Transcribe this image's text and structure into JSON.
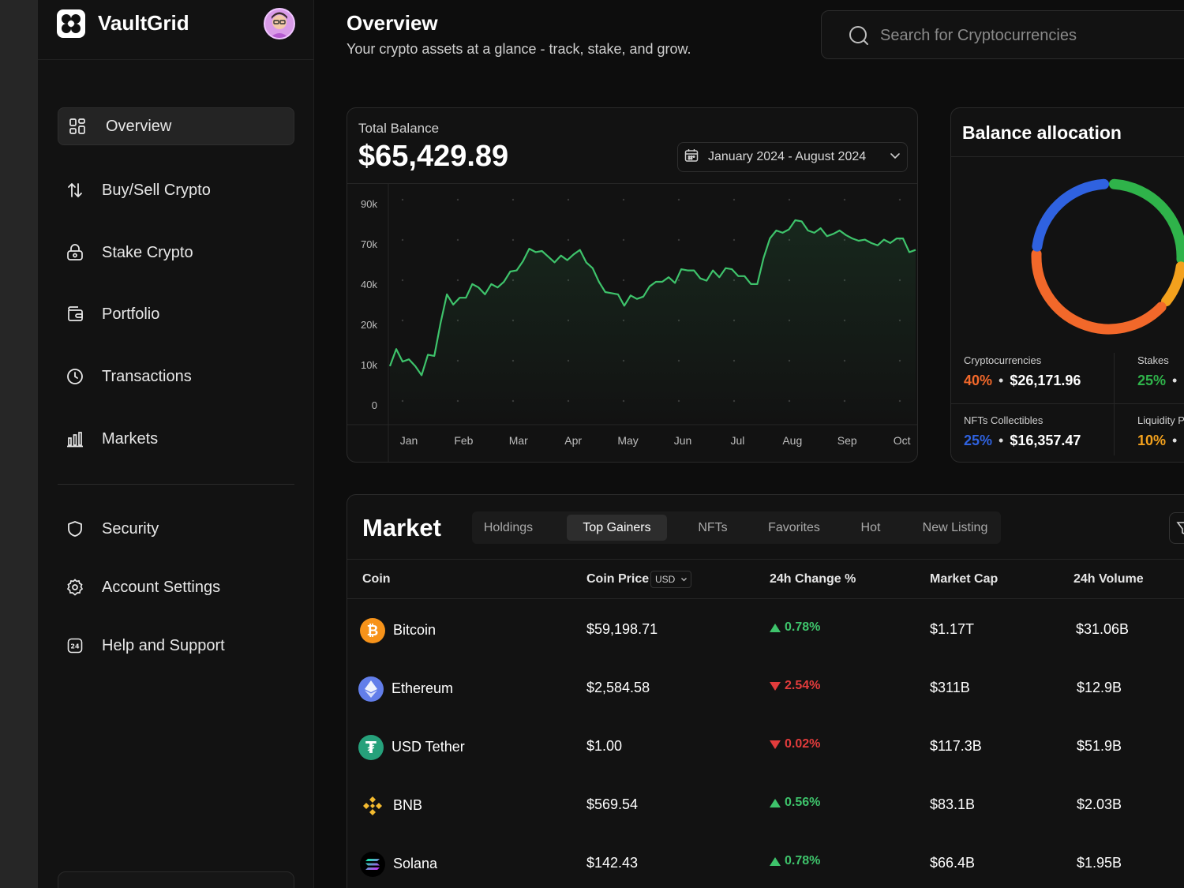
{
  "brand": {
    "name": "VaultGrid"
  },
  "nav": {
    "items": [
      {
        "label": "Overview",
        "icon": "grid-icon"
      },
      {
        "label": "Buy/Sell Crypto",
        "icon": "arrows-updown-icon"
      },
      {
        "label": "Stake Crypto",
        "icon": "lock-icon"
      },
      {
        "label": "Portfolio",
        "icon": "wallet-icon"
      },
      {
        "label": "Transactions",
        "icon": "clock-icon"
      },
      {
        "label": "Markets",
        "icon": "bar-chart-icon"
      }
    ],
    "secondary": [
      {
        "label": "Security",
        "icon": "shield-icon"
      },
      {
        "label": "Account Settings",
        "icon": "gear-icon"
      },
      {
        "label": "Help and Support",
        "icon": "support-24-icon"
      }
    ]
  },
  "header": {
    "title": "Overview",
    "subtitle": "Your crypto assets at a glance - track, stake, and grow.",
    "search_placeholder": "Search for Cryptocurrencies"
  },
  "balance": {
    "label": "Total Balance",
    "value": "$65,429.89",
    "range": "January 2024 - August 2024"
  },
  "chart_data": {
    "type": "line",
    "title": "",
    "xlabel": "",
    "ylabel": "",
    "x_ticks": [
      "Jan",
      "Feb",
      "Mar",
      "Apr",
      "May",
      "Jun",
      "Jul",
      "Aug",
      "Sep",
      "Oct"
    ],
    "y_ticks": [
      "0",
      "10k",
      "20k",
      "40k",
      "70k",
      "90k"
    ],
    "line_color": "#3ec36b",
    "grid": "dotted",
    "series": [
      {
        "values": [
          3.4,
          4.9,
          3.8,
          4.0,
          3.4,
          2.6,
          4.4,
          4.3,
          7.2,
          9.7,
          8.8,
          9.4,
          9.4,
          10.6,
          10.3,
          9.7,
          10.6,
          10.3,
          10.8,
          11.7,
          11.8,
          12.6,
          13.7,
          13.4,
          13.5,
          13.0,
          12.5,
          13.1,
          12.7,
          13.2,
          13.6,
          12.5,
          12.0,
          10.8,
          9.9,
          9.8,
          9.7,
          8.7,
          9.6,
          9.3,
          9.5,
          10.4,
          10.8,
          10.8,
          11.2,
          10.7,
          11.9,
          11.8,
          11.8,
          11.1,
          10.9,
          11.8,
          11.2,
          12.0,
          11.9,
          11.3,
          11.3,
          10.6,
          10.6,
          12.9,
          14.6,
          15.3,
          15.1,
          15.4,
          16.2,
          16.1,
          15.3,
          15.1,
          15.5,
          14.8,
          15.0,
          15.3,
          14.9,
          14.6,
          14.4,
          14.5,
          14.2,
          14.0,
          14.5,
          14.2,
          14.6,
          14.6,
          13.4,
          13.6
        ]
      }
    ]
  },
  "allocation": {
    "title": "Balance allocation",
    "items": [
      {
        "name": "Cryptocurrencies",
        "pct": "40%",
        "amount": "$26,171.96",
        "color": "#f2682a"
      },
      {
        "name": "Stakes",
        "pct": "25%",
        "color": "#2fb34a"
      },
      {
        "name": "NFTs Collectibles",
        "pct": "25%",
        "amount": "$16,357.47",
        "color": "#2f62e0"
      },
      {
        "name": "Liquidity P",
        "pct": "10%",
        "color": "#f3a11d"
      }
    ]
  },
  "market": {
    "title": "Market",
    "tabs": [
      "Holdings",
      "Top Gainers",
      "NFTs",
      "Favorites",
      "Hot",
      "New Listing"
    ],
    "active_tab": "Top Gainers",
    "columns": {
      "coin": "Coin",
      "price": "Coin Price",
      "currency": "USD",
      "change": "24h Change %",
      "cap": "Market Cap",
      "volume": "24h Volume"
    },
    "rows": [
      {
        "name": "Bitcoin",
        "price": "$59,198.71",
        "change": "0.78%",
        "dir": "up",
        "cap": "$1.17T",
        "volume": "$31.06B",
        "color": "#f7931a",
        "glyph": "₿"
      },
      {
        "name": "Ethereum",
        "price": "$2,584.58",
        "change": "2.54%",
        "dir": "down",
        "cap": "$311B",
        "volume": "$12.9B",
        "color": "#627eea",
        "glyph": "◆"
      },
      {
        "name": "USD Tether",
        "price": "$1.00",
        "change": "0.02%",
        "dir": "down",
        "cap": "$117.3B",
        "volume": "$51.9B",
        "color": "#26a17b",
        "glyph": "₮"
      },
      {
        "name": "BNB",
        "price": "$569.54",
        "change": "0.56%",
        "dir": "up",
        "cap": "$83.1B",
        "volume": "$2.03B",
        "color": "#1a1a1a",
        "glyph": "◈"
      },
      {
        "name": "Solana",
        "price": "$142.43",
        "change": "0.78%",
        "dir": "up",
        "cap": "$66.4B",
        "volume": "$1.95B",
        "color": "#000000",
        "glyph": "≡"
      }
    ]
  }
}
